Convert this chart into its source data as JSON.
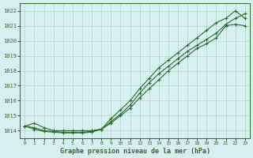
{
  "title": "Graphe pression niveau de la mer (hPa)",
  "background_color": "#d6f0f0",
  "grid_color": "#b0c8c8",
  "line_color": "#2d6a2d",
  "xlim": [
    -0.5,
    23.5
  ],
  "ylim": [
    1013.5,
    1022.5
  ],
  "yticks": [
    1014,
    1015,
    1016,
    1017,
    1018,
    1019,
    1020,
    1021,
    1022
  ],
  "xticks": [
    0,
    1,
    2,
    3,
    4,
    5,
    6,
    7,
    8,
    9,
    10,
    11,
    12,
    13,
    14,
    15,
    16,
    17,
    18,
    19,
    20,
    21,
    22,
    23
  ],
  "series": [
    [
      1014.3,
      1014.5,
      1014.2,
      1014.0,
      1014.0,
      1014.0,
      1014.0,
      1014.0,
      1014.1,
      1014.5,
      1015.0,
      1015.5,
      1016.2,
      1016.8,
      1017.4,
      1018.0,
      1018.5,
      1019.0,
      1019.5,
      1019.8,
      1020.2,
      1021.0,
      1021.1,
      1021.0
    ],
    [
      1014.3,
      1014.2,
      1014.0,
      1013.95,
      1013.9,
      1013.9,
      1013.9,
      1013.95,
      1014.1,
      1014.6,
      1015.1,
      1015.7,
      1016.5,
      1017.2,
      1017.8,
      1018.3,
      1018.8,
      1019.3,
      1019.7,
      1020.1,
      1020.5,
      1021.1,
      1021.5,
      1021.8
    ],
    [
      1014.3,
      1014.1,
      1013.95,
      1013.9,
      1013.85,
      1013.85,
      1013.85,
      1013.9,
      1014.1,
      1014.8,
      1015.4,
      1016.0,
      1016.8,
      1017.5,
      1018.2,
      1018.7,
      1019.2,
      1019.7,
      1020.2,
      1020.7,
      1021.2,
      1021.5,
      1022.0,
      1021.5
    ]
  ]
}
